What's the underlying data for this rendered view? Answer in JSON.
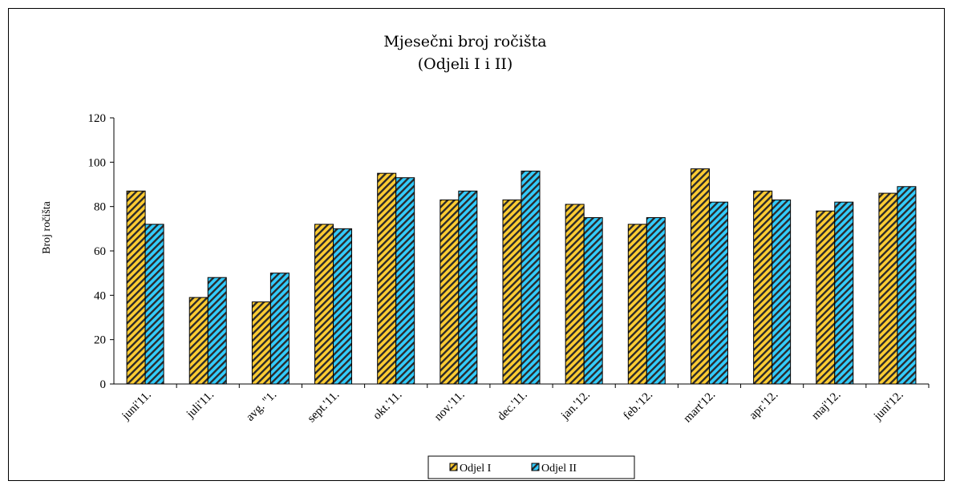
{
  "chart_data": {
    "type": "bar",
    "title": "Mjesečni broj ročišta",
    "subtitle": "(Odjeli I i II)",
    "xlabel": "",
    "ylabel": "Broj ročišta",
    "ylim": [
      0,
      120
    ],
    "yticks": [
      0,
      20,
      40,
      60,
      80,
      100,
      120
    ],
    "grid": false,
    "legend_position": "bottom",
    "categories": [
      "juni'11.",
      "juli'11.",
      "avg. \"1.",
      "sept.'11.",
      "okt.'11.",
      "nov.'11.",
      "dec.'11.",
      "jan.'12.",
      "feb.'12.",
      "mart'12.",
      "apr.'12.",
      "maj'12.",
      "juni'12."
    ],
    "series": [
      {
        "name": "Odjel I",
        "color": "#FFCC33",
        "pattern": "diagonal-hatch-dark",
        "values": [
          87,
          39,
          37,
          72,
          95,
          83,
          83,
          81,
          72,
          97,
          87,
          78,
          86
        ]
      },
      {
        "name": "Odjel II",
        "color": "#33CCFF",
        "pattern": "diagonal-hatch-dark",
        "values": [
          72,
          48,
          50,
          70,
          93,
          87,
          96,
          75,
          75,
          82,
          83,
          82,
          89
        ]
      }
    ]
  }
}
